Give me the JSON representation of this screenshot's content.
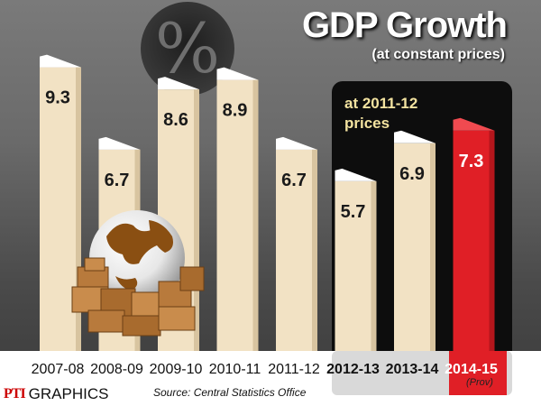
{
  "header": {
    "title": "GDP Growth",
    "subtitle": "(at constant  prices)"
  },
  "annotation": {
    "base_year_label_line1": "at 2011-12",
    "base_year_label_line2": "prices",
    "prov_label": "(Prov)"
  },
  "footer": {
    "credit_brand": "PTI",
    "credit_text": "GRAPHICS",
    "source": "Source: Central Statistics Office"
  },
  "colors": {
    "bar_fill": "#f2e2c4",
    "bar_highlight": "#e01f26",
    "highlight_panel": "#0d0d0d",
    "label_band": "#ffffff"
  },
  "icons": [
    "percent-icon",
    "globe-with-boxes-icon"
  ],
  "chart_data": {
    "type": "bar",
    "title": "GDP Growth",
    "subtitle": "(at constant  prices)",
    "categories": [
      "2007-08",
      "2008-09",
      "2009-10",
      "2010-11",
      "2011-12",
      "2012-13",
      "2013-14",
      "2014-15"
    ],
    "values": [
      9.3,
      6.7,
      8.6,
      8.9,
      6.7,
      5.7,
      6.9,
      7.3
    ],
    "value_labels": [
      "9.3",
      "6.7",
      "8.6",
      "8.9",
      "6.7",
      "5.7",
      "6.9",
      "7.3"
    ],
    "highlighted_categories": [
      "2014-15"
    ],
    "grouped_categories": [
      "2012-13",
      "2013-14",
      "2014-15"
    ],
    "ylim": [
      0,
      10
    ],
    "grid": false,
    "legend": "none"
  }
}
